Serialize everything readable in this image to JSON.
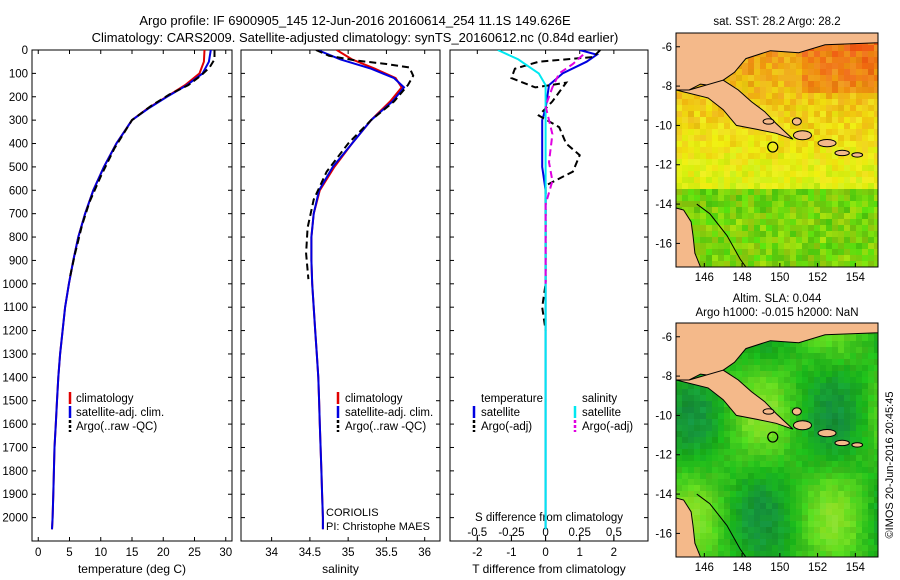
{
  "header": {
    "line1": "Argo profile: IF 6900905_145 12-Jun-2016 20160614_254 11.1S 149.626E",
    "line2": "Climatology: CARS2009. Satellite-adjusted climatology: synTS_20160612.nc (0.84d earlier)"
  },
  "side_label": "©IMOS 20-Jun-2016 20:45:45",
  "credits": [
    "CORIOLIS",
    "PI: Christophe MAES"
  ],
  "colors": {
    "climatology": "#e00000",
    "satellite": "#0000e0",
    "argo": "#000000",
    "salinity_satellite": "#00e8f0",
    "salinity_argo": "#e000e0",
    "land": "#f4b98a",
    "coast": "#000000"
  },
  "chart_data": [
    {
      "type": "line",
      "id": "temperature",
      "xlabel": "temperature (deg C)",
      "ylabel": "",
      "xlim": [
        -1,
        31
      ],
      "ylim": [
        2100,
        0
      ],
      "xticks": [
        0,
        5,
        10,
        15,
        20,
        25,
        30
      ],
      "yticks": [
        0,
        100,
        200,
        300,
        400,
        500,
        600,
        700,
        800,
        900,
        1000,
        1100,
        1200,
        1300,
        1400,
        1500,
        1600,
        1700,
        1800,
        1900,
        2000
      ],
      "legend": [
        "climatology",
        "satellite-adj. clim.",
        "Argo(..raw -QC)"
      ],
      "series": [
        {
          "name": "climatology",
          "style": "solid",
          "color": "#e00000",
          "points": [
            [
              26.6,
              0
            ],
            [
              26.5,
              50
            ],
            [
              25.8,
              100
            ],
            [
              23.5,
              150
            ],
            [
              20.5,
              200
            ],
            [
              17.5,
              250
            ],
            [
              15.0,
              300
            ],
            [
              12.5,
              400
            ],
            [
              10.5,
              500
            ],
            [
              8.8,
              600
            ],
            [
              7.5,
              700
            ],
            [
              6.4,
              800
            ],
            [
              5.6,
              900
            ],
            [
              4.9,
              1000
            ],
            [
              4.3,
              1100
            ],
            [
              3.9,
              1200
            ],
            [
              3.5,
              1300
            ],
            [
              3.2,
              1400
            ],
            [
              3.0,
              1500
            ],
            [
              2.8,
              1600
            ],
            [
              2.6,
              1700
            ],
            [
              2.5,
              1800
            ],
            [
              2.4,
              1900
            ],
            [
              2.3,
              2000
            ],
            [
              2.2,
              2050
            ]
          ]
        },
        {
          "name": "satellite-adj. clim.",
          "style": "solid",
          "color": "#0000e0",
          "points": [
            [
              27.6,
              0
            ],
            [
              27.3,
              50
            ],
            [
              26.3,
              100
            ],
            [
              23.8,
              150
            ],
            [
              20.6,
              200
            ],
            [
              17.6,
              250
            ],
            [
              15.0,
              300
            ],
            [
              12.5,
              400
            ],
            [
              10.5,
              500
            ],
            [
              8.8,
              600
            ],
            [
              7.5,
              700
            ],
            [
              6.4,
              800
            ],
            [
              5.6,
              900
            ],
            [
              4.9,
              1000
            ],
            [
              4.3,
              1100
            ],
            [
              3.9,
              1200
            ],
            [
              3.5,
              1300
            ],
            [
              3.2,
              1400
            ],
            [
              3.0,
              1500
            ],
            [
              2.8,
              1600
            ],
            [
              2.6,
              1700
            ],
            [
              2.5,
              1800
            ],
            [
              2.4,
              1900
            ],
            [
              2.3,
              2000
            ],
            [
              2.2,
              2050
            ]
          ]
        },
        {
          "name": "Argo(..raw -QC)",
          "style": "dashed",
          "color": "#000000",
          "points": [
            [
              28.2,
              0
            ],
            [
              28.2,
              40
            ],
            [
              27.4,
              75
            ],
            [
              26.0,
              110
            ],
            [
              24.0,
              150
            ],
            [
              21.0,
              190
            ],
            [
              18.0,
              240
            ],
            [
              15.0,
              300
            ],
            [
              12.2,
              420
            ],
            [
              10.0,
              540
            ],
            [
              8.2,
              650
            ],
            [
              7.0,
              750
            ],
            [
              5.9,
              870
            ],
            [
              5.0,
              980
            ]
          ]
        }
      ]
    },
    {
      "type": "line",
      "id": "salinity",
      "xlabel": "salinity",
      "ylabel": "",
      "xlim": [
        33.6,
        36.2
      ],
      "ylim": [
        2100,
        0
      ],
      "xticks": [
        34,
        34.5,
        35,
        35.5,
        36
      ],
      "legend": [
        "climatology",
        "satellite-adj. clim.",
        "Argo(..raw -QC)"
      ],
      "series": [
        {
          "name": "climatology",
          "style": "solid",
          "color": "#e00000",
          "points": [
            [
              34.85,
              0
            ],
            [
              35.05,
              40
            ],
            [
              35.35,
              80
            ],
            [
              35.62,
              120
            ],
            [
              35.7,
              160
            ],
            [
              35.55,
              220
            ],
            [
              35.3,
              300
            ],
            [
              35.05,
              400
            ],
            [
              34.82,
              500
            ],
            [
              34.63,
              600
            ],
            [
              34.55,
              700
            ],
            [
              34.52,
              800
            ],
            [
              34.52,
              900
            ],
            [
              34.53,
              1000
            ],
            [
              34.55,
              1100
            ],
            [
              34.57,
              1200
            ],
            [
              34.59,
              1300
            ],
            [
              34.61,
              1400
            ],
            [
              34.62,
              1500
            ],
            [
              34.63,
              1600
            ],
            [
              34.64,
              1700
            ],
            [
              34.65,
              1800
            ],
            [
              34.66,
              1900
            ],
            [
              34.67,
              2000
            ],
            [
              34.67,
              2050
            ]
          ]
        },
        {
          "name": "satellite-adj. clim.",
          "style": "solid",
          "color": "#0000e0",
          "points": [
            [
              34.6,
              0
            ],
            [
              34.9,
              40
            ],
            [
              35.3,
              80
            ],
            [
              35.6,
              120
            ],
            [
              35.73,
              160
            ],
            [
              35.58,
              220
            ],
            [
              35.3,
              300
            ],
            [
              35.05,
              400
            ],
            [
              34.8,
              500
            ],
            [
              34.62,
              600
            ],
            [
              34.55,
              700
            ],
            [
              34.52,
              800
            ],
            [
              34.52,
              900
            ],
            [
              34.53,
              1000
            ],
            [
              34.55,
              1100
            ],
            [
              34.57,
              1200
            ],
            [
              34.59,
              1300
            ],
            [
              34.61,
              1400
            ],
            [
              34.62,
              1500
            ],
            [
              34.63,
              1600
            ],
            [
              34.64,
              1700
            ],
            [
              34.65,
              1800
            ],
            [
              34.66,
              1900
            ],
            [
              34.67,
              2000
            ],
            [
              34.67,
              2050
            ]
          ]
        },
        {
          "name": "Argo(..raw -QC)",
          "style": "dashed",
          "color": "#000000",
          "points": [
            [
              34.58,
              0
            ],
            [
              34.75,
              25
            ],
            [
              35.1,
              45
            ],
            [
              35.5,
              60
            ],
            [
              35.8,
              75
            ],
            [
              35.85,
              110
            ],
            [
              35.78,
              150
            ],
            [
              35.6,
              220
            ],
            [
              35.3,
              300
            ],
            [
              35.0,
              400
            ],
            [
              34.72,
              520
            ],
            [
              34.55,
              640
            ],
            [
              34.47,
              760
            ],
            [
              34.45,
              870
            ],
            [
              34.48,
              980
            ]
          ]
        }
      ]
    },
    {
      "type": "line",
      "id": "differences",
      "xlabel": "T difference from climatology",
      "xlabel_top": "S difference from climatology",
      "xlim": [
        -2.8,
        3.0
      ],
      "ylim": [
        2100,
        0
      ],
      "xticks": [
        -2,
        -1,
        0,
        1,
        2
      ],
      "xticks_top": [
        -0.5,
        -0.25,
        0,
        0.25,
        0.5
      ],
      "legend_titles": [
        "temperature",
        "salinity"
      ],
      "legend": [
        "satellite",
        "Argo(-adj)",
        "satellite",
        "Argo(-adj)"
      ],
      "series": [
        {
          "name": "satellite",
          "group": "temperature",
          "style": "solid",
          "color": "#0000e0",
          "points": [
            [
              1.0,
              0
            ],
            [
              1.5,
              20
            ],
            [
              1.2,
              50
            ],
            [
              0.5,
              100
            ],
            [
              0.1,
              150
            ],
            [
              0.0,
              250
            ],
            [
              -0.1,
              300
            ],
            [
              -0.1,
              400
            ],
            [
              -0.1,
              500
            ],
            [
              0.0,
              600
            ],
            [
              0.0,
              700
            ],
            [
              0.0,
              800
            ],
            [
              0.0,
              1000
            ],
            [
              0.0,
              2050
            ]
          ]
        },
        {
          "name": "Argo(-adj)",
          "group": "temperature",
          "style": "dashed",
          "color": "#000000",
          "points": [
            [
              1.6,
              0
            ],
            [
              1.4,
              30
            ],
            [
              -0.2,
              50
            ],
            [
              -0.9,
              80
            ],
            [
              -1.0,
              120
            ],
            [
              -0.3,
              160
            ],
            [
              0.6,
              140
            ],
            [
              0.2,
              220
            ],
            [
              -0.2,
              280
            ],
            [
              0.4,
              330
            ],
            [
              0.6,
              400
            ],
            [
              1.0,
              450
            ],
            [
              0.8,
              520
            ],
            [
              0.0,
              580
            ],
            [
              0.0,
              650
            ],
            [
              0.0,
              800
            ],
            [
              0.0,
              1000
            ],
            [
              -0.1,
              1100
            ],
            [
              0.0,
              1200
            ]
          ]
        },
        {
          "name": "satellite",
          "group": "salinity",
          "style": "solid",
          "color": "#00e8f0",
          "points": [
            [
              -1.4,
              0
            ],
            [
              -0.8,
              40
            ],
            [
              -0.5,
              70
            ],
            [
              -0.2,
              100
            ],
            [
              0.0,
              150
            ],
            [
              0.0,
              300
            ],
            [
              0.0,
              600
            ],
            [
              0.0,
              1000
            ],
            [
              0.0,
              1500
            ],
            [
              0.0,
              2050
            ]
          ]
        },
        {
          "name": "Argo(-adj)",
          "group": "salinity",
          "style": "dashed",
          "color": "#e000e0",
          "points": [
            [
              1.1,
              20
            ],
            [
              0.8,
              60
            ],
            [
              0.4,
              100
            ],
            [
              0.2,
              160
            ],
            [
              0.0,
              240
            ],
            [
              0.2,
              360
            ],
            [
              0.1,
              480
            ],
            [
              0.2,
              560
            ],
            [
              0.0,
              660
            ],
            [
              0.0,
              800
            ],
            [
              0.0,
              1000
            ]
          ]
        }
      ]
    },
    {
      "type": "heatmap",
      "id": "sst_map",
      "title": "sat. SST: 28.2 Argo: 28.2",
      "xlim": [
        144.5,
        155.2
      ],
      "ylim": [
        -17.2,
        -5.3
      ],
      "xticks": [
        146,
        148,
        150,
        152,
        154
      ],
      "yticks": [
        -6,
        -8,
        -10,
        -12,
        -14,
        -16
      ],
      "float_position": [
        149.626,
        -11.1
      ]
    },
    {
      "type": "heatmap",
      "id": "sla_map",
      "title": "Altim. SLA: 0.044",
      "subtitle": "Argo h1000: -0.015 h2000: NaN",
      "xlim": [
        144.5,
        155.2
      ],
      "ylim": [
        -17.2,
        -5.3
      ],
      "xticks": [
        146,
        148,
        150,
        152,
        154
      ],
      "yticks": [
        -6,
        -8,
        -10,
        -12,
        -14,
        -16
      ],
      "float_position": [
        149.626,
        -11.1
      ]
    }
  ]
}
